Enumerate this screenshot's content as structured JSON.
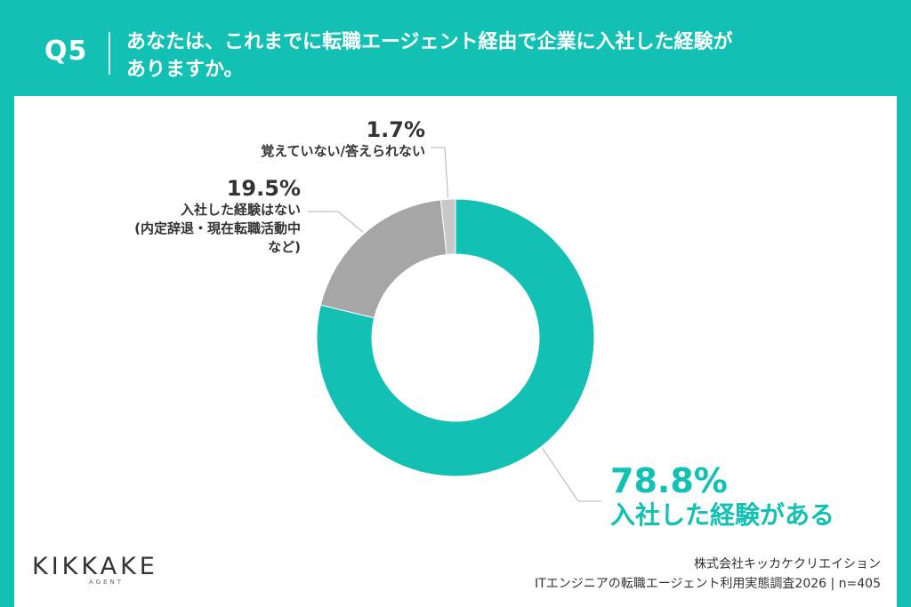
{
  "header": {
    "q_number": "Q5",
    "question_line1": "あなたは、これまでに転職エージェント経由で企業に入社した経験が",
    "question_line2": "ありますか。"
  },
  "chart_data": {
    "type": "pie",
    "donut": true,
    "categories": [
      "入社した経験がある",
      "入社した経験はない(内定辞退・現在転職活動中など)",
      "覚えていない/答えられない"
    ],
    "values": [
      78.8,
      19.5,
      1.7
    ],
    "value_labels": [
      "78.8%",
      "19.5%",
      "1.7%"
    ],
    "label_lines": [
      [
        "入社した経験がある"
      ],
      [
        "入社した経験はない",
        "(内定辞退・現在転職活動中",
        "など)"
      ],
      [
        "覚えていない/答えられない"
      ]
    ],
    "colors": [
      "#12C1B3",
      "#A6A6A6",
      "#C8C8C8"
    ],
    "start_angle_deg": 0,
    "direction": "clockwise"
  },
  "footer": {
    "logo_text": "KIKKAKE",
    "logo_sub": "AGENT",
    "company": "株式会社キッカケクリエイション",
    "survey": "ITエンジニアの転職エージェント利用実態調査2026 | n=405"
  }
}
